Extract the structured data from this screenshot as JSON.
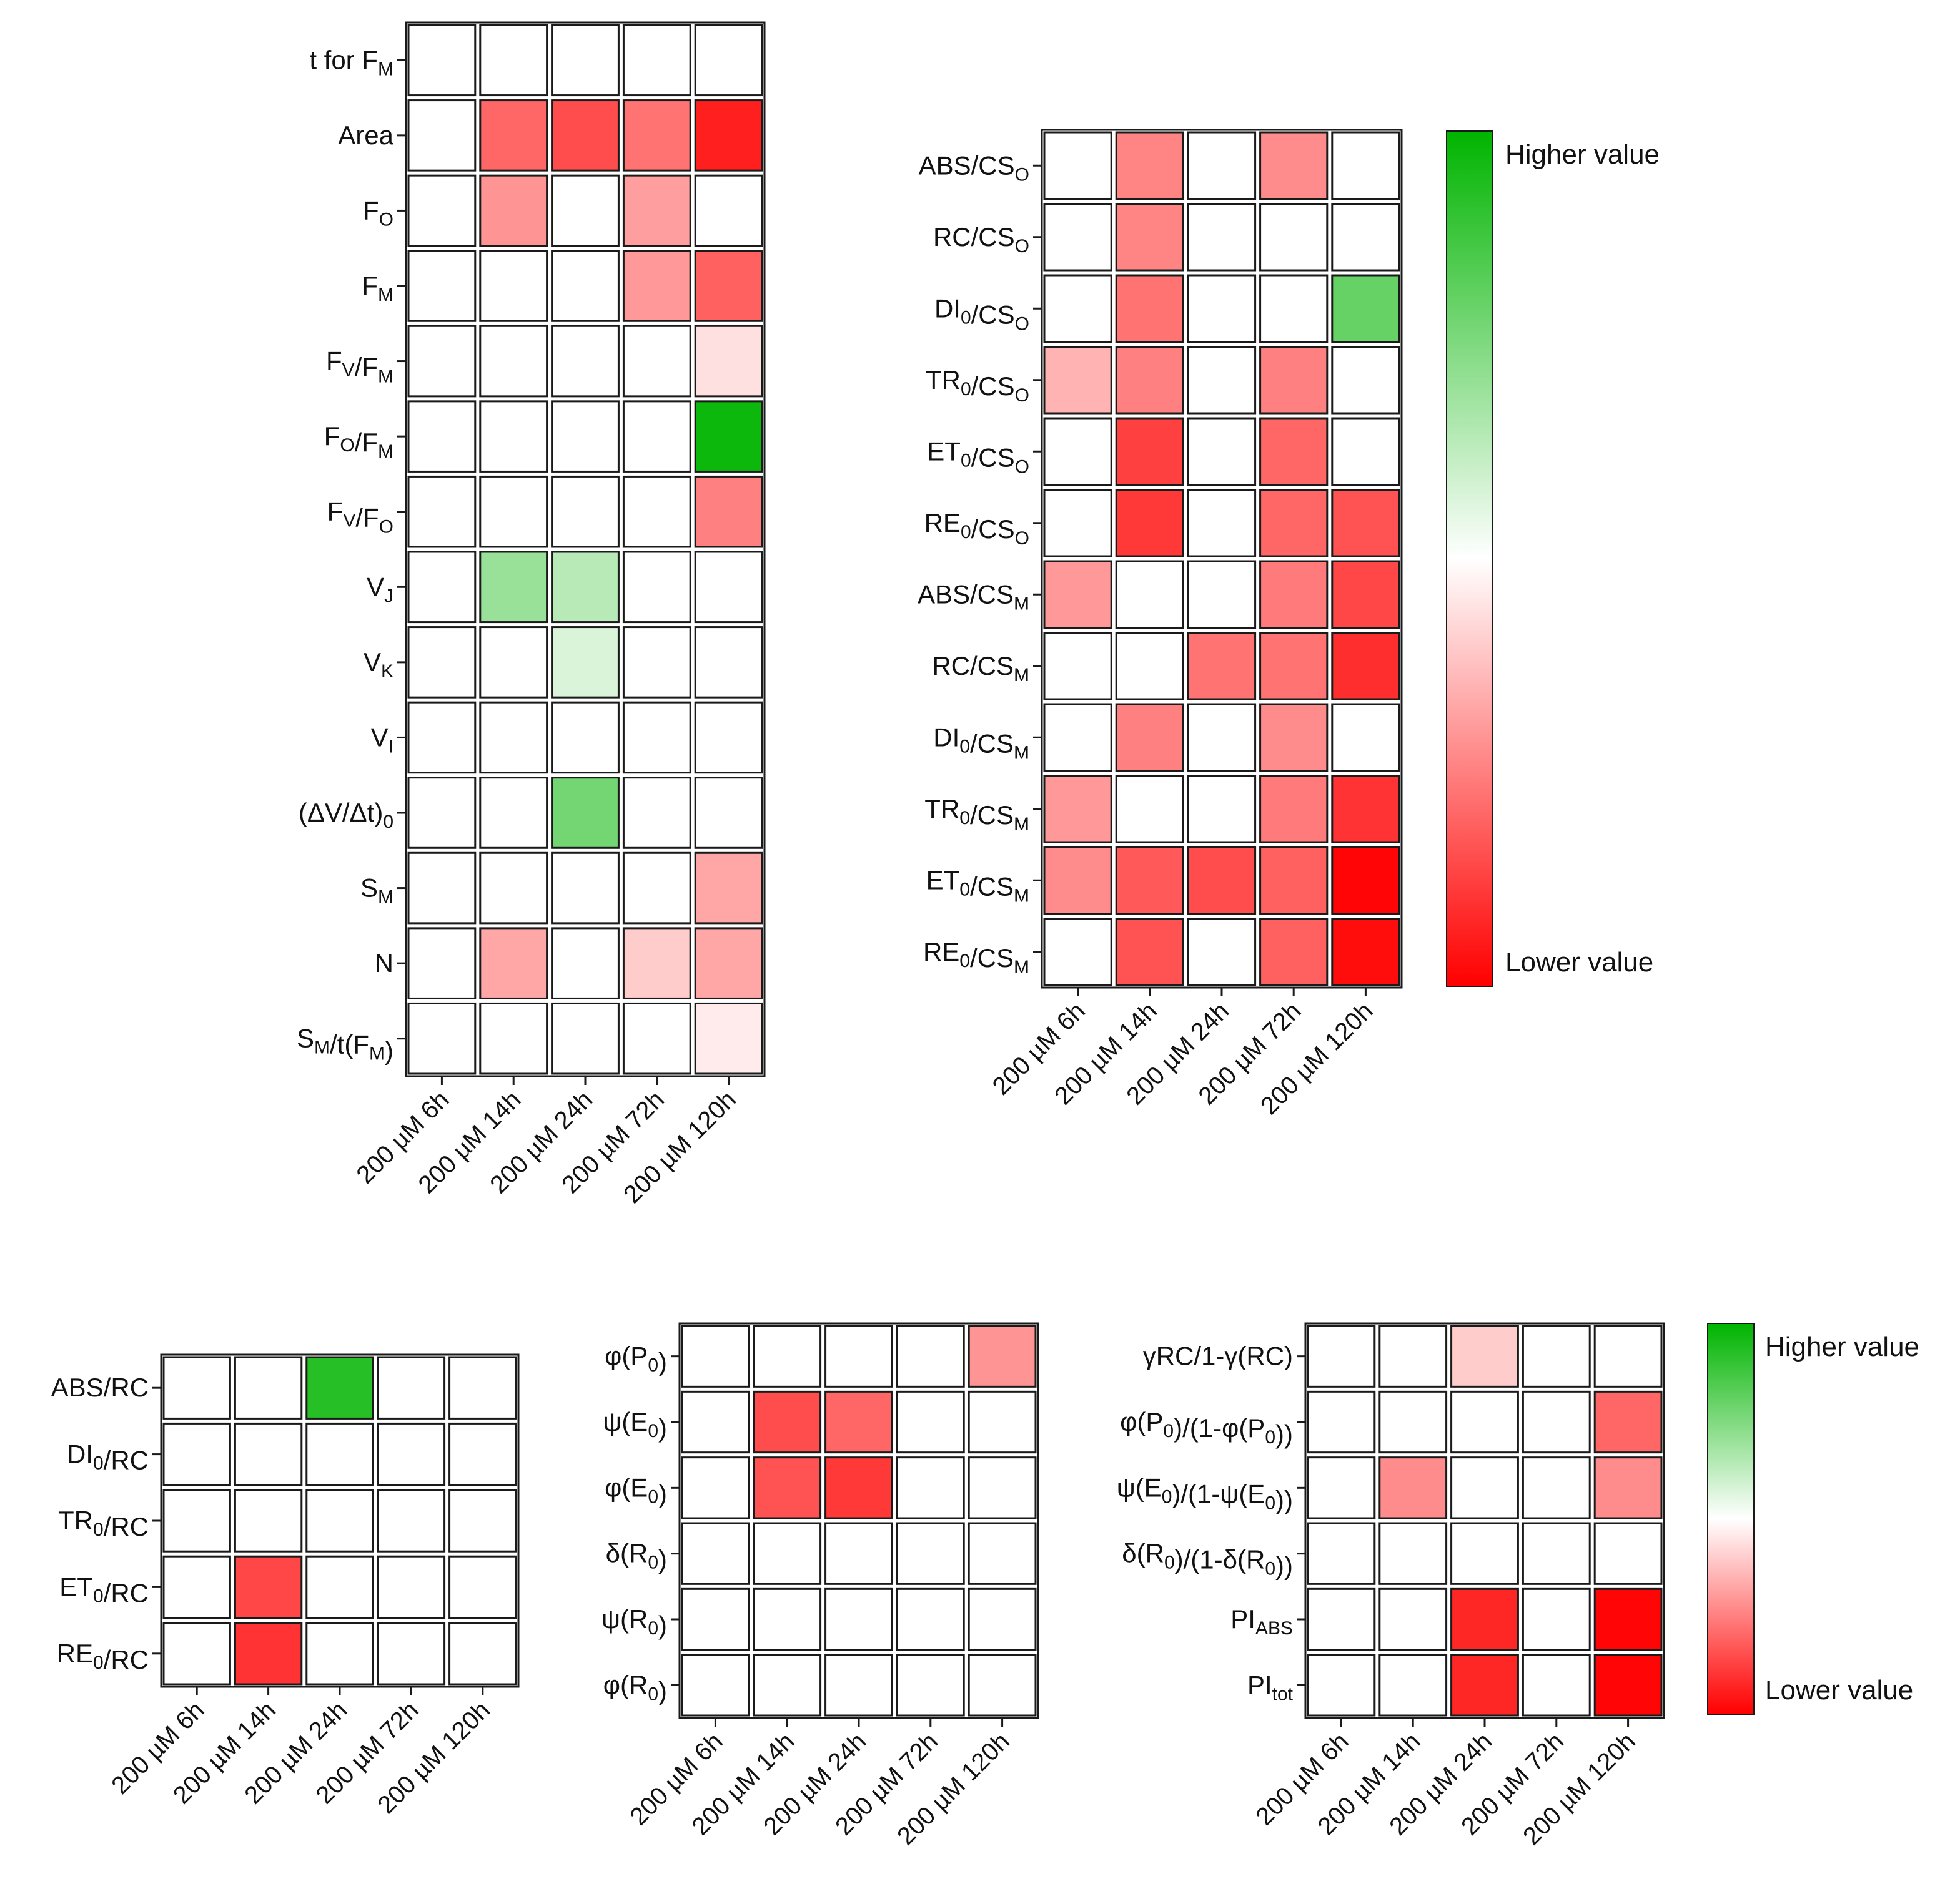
{
  "chart_data": [
    {
      "id": "heatmap-1",
      "type": "heatmap",
      "columns": [
        "200 µM 6h",
        "200 µM 14h",
        "200 µM 24h",
        "200 µM 72h",
        "200 µM 120h"
      ],
      "rows": [
        {
          "label": [
            [
              "t for F",
              ""
            ],
            [
              "M",
              "sub"
            ]
          ],
          "values": [
            0,
            0,
            0,
            0,
            0
          ]
        },
        {
          "label": [
            [
              "Area",
              ""
            ]
          ],
          "values": [
            0,
            -0.6,
            -0.7,
            -0.55,
            -0.88
          ]
        },
        {
          "label": [
            [
              "F",
              ""
            ],
            [
              "O",
              "sub"
            ]
          ],
          "values": [
            0,
            -0.42,
            0,
            -0.38,
            0
          ]
        },
        {
          "label": [
            [
              "F",
              ""
            ],
            [
              "M",
              "sub"
            ]
          ],
          "values": [
            0,
            0,
            0,
            -0.4,
            -0.62
          ]
        },
        {
          "label": [
            [
              "F",
              ""
            ],
            [
              "V",
              "sub"
            ],
            [
              "/F",
              ""
            ],
            [
              "M",
              "sub"
            ]
          ],
          "values": [
            0,
            0,
            0,
            0,
            -0.12
          ]
        },
        {
          "label": [
            [
              "F",
              ""
            ],
            [
              "O",
              "sub"
            ],
            [
              "/F",
              ""
            ],
            [
              "M",
              "sub"
            ]
          ],
          "values": [
            0,
            0,
            0,
            0,
            0.95
          ]
        },
        {
          "label": [
            [
              "F",
              ""
            ],
            [
              "V",
              "sub"
            ],
            [
              "/F",
              ""
            ],
            [
              "O",
              "sub"
            ]
          ],
          "values": [
            0,
            0,
            0,
            0,
            -0.5
          ]
        },
        {
          "label": [
            [
              "V",
              ""
            ],
            [
              "J",
              "sub"
            ]
          ],
          "values": [
            0,
            0.4,
            0.28,
            0,
            0
          ]
        },
        {
          "label": [
            [
              "V",
              ""
            ],
            [
              "K",
              "sub"
            ]
          ],
          "values": [
            0,
            0,
            0.15,
            0,
            0
          ]
        },
        {
          "label": [
            [
              "V",
              ""
            ],
            [
              "I",
              "sub"
            ]
          ],
          "values": [
            0,
            0,
            0,
            0,
            0
          ]
        },
        {
          "label": [
            [
              "(ΔV/Δt)",
              ""
            ],
            [
              "0",
              "sub"
            ]
          ],
          "values": [
            0,
            0,
            0.55,
            0,
            0
          ]
        },
        {
          "label": [
            [
              "S",
              ""
            ],
            [
              "M",
              "sub"
            ]
          ],
          "values": [
            0,
            0,
            0,
            0,
            -0.35
          ]
        },
        {
          "label": [
            [
              "N",
              ""
            ]
          ],
          "values": [
            0,
            -0.35,
            0,
            -0.2,
            -0.35
          ]
        },
        {
          "label": [
            [
              "S",
              ""
            ],
            [
              "M",
              "sub"
            ],
            [
              "/t(F",
              ""
            ],
            [
              "M",
              "sub"
            ],
            [
              ")",
              ""
            ]
          ],
          "values": [
            0,
            0,
            0,
            0,
            -0.08
          ]
        }
      ]
    },
    {
      "id": "heatmap-2",
      "type": "heatmap",
      "columns": [
        "200 µM 6h",
        "200 µM 14h",
        "200 µM 24h",
        "200 µM 72h",
        "200 µM 120h"
      ],
      "rows": [
        {
          "label": [
            [
              "ABS/CS",
              ""
            ],
            [
              "O",
              "sub"
            ]
          ],
          "values": [
            0,
            -0.48,
            0,
            -0.45,
            0
          ]
        },
        {
          "label": [
            [
              "RC/CS",
              ""
            ],
            [
              "O",
              "sub"
            ]
          ],
          "values": [
            0,
            -0.48,
            0,
            0,
            0
          ]
        },
        {
          "label": [
            [
              "DI",
              ""
            ],
            [
              "0",
              "sub"
            ],
            [
              "/CS",
              ""
            ],
            [
              "O",
              "sub"
            ]
          ],
          "values": [
            0,
            -0.55,
            0,
            0,
            0.6
          ]
        },
        {
          "label": [
            [
              "TR",
              ""
            ],
            [
              "0",
              "sub"
            ],
            [
              "/CS",
              ""
            ],
            [
              "O",
              "sub"
            ]
          ],
          "values": [
            -0.3,
            -0.5,
            0,
            -0.5,
            0
          ]
        },
        {
          "label": [
            [
              "ET",
              ""
            ],
            [
              "0",
              "sub"
            ],
            [
              "/CS",
              ""
            ],
            [
              "O",
              "sub"
            ]
          ],
          "values": [
            0,
            -0.75,
            0,
            -0.6,
            0
          ]
        },
        {
          "label": [
            [
              "RE",
              ""
            ],
            [
              "0",
              "sub"
            ],
            [
              "/CS",
              ""
            ],
            [
              "O",
              "sub"
            ]
          ],
          "values": [
            0,
            -0.78,
            0,
            -0.6,
            -0.68
          ]
        },
        {
          "label": [
            [
              "ABS/CS",
              ""
            ],
            [
              "M",
              "sub"
            ]
          ],
          "values": [
            -0.4,
            0,
            0,
            -0.52,
            -0.72
          ]
        },
        {
          "label": [
            [
              "RC/CS",
              ""
            ],
            [
              "M",
              "sub"
            ]
          ],
          "values": [
            0,
            0,
            -0.55,
            -0.55,
            -0.82
          ]
        },
        {
          "label": [
            [
              "DI",
              ""
            ],
            [
              "0",
              "sub"
            ],
            [
              "/CS",
              ""
            ],
            [
              "M",
              "sub"
            ]
          ],
          "values": [
            0,
            -0.5,
            0,
            -0.45,
            0
          ]
        },
        {
          "label": [
            [
              "TR",
              ""
            ],
            [
              "0",
              "sub"
            ],
            [
              "/CS",
              ""
            ],
            [
              "M",
              "sub"
            ]
          ],
          "values": [
            -0.4,
            0,
            0,
            -0.52,
            -0.8
          ]
        },
        {
          "label": [
            [
              "ET",
              ""
            ],
            [
              "0",
              "sub"
            ],
            [
              "/CS",
              ""
            ],
            [
              "M",
              "sub"
            ]
          ],
          "values": [
            -0.45,
            -0.65,
            -0.7,
            -0.62,
            -0.98
          ]
        },
        {
          "label": [
            [
              "RE",
              ""
            ],
            [
              "0",
              "sub"
            ],
            [
              "/CS",
              ""
            ],
            [
              "M",
              "sub"
            ]
          ],
          "values": [
            0,
            -0.68,
            0,
            -0.62,
            -0.95
          ]
        }
      ]
    },
    {
      "id": "heatmap-3",
      "type": "heatmap",
      "columns": [
        "200 µM 6h",
        "200 µM 14h",
        "200 µM 24h",
        "200 µM 72h",
        "200 µM 120h"
      ],
      "rows": [
        {
          "label": [
            [
              "ABS/RC",
              ""
            ]
          ],
          "values": [
            0,
            0,
            0.85,
            0,
            0
          ]
        },
        {
          "label": [
            [
              "DI",
              ""
            ],
            [
              "0",
              "sub"
            ],
            [
              "/RC",
              ""
            ]
          ],
          "values": [
            0,
            0,
            0,
            0,
            0
          ]
        },
        {
          "label": [
            [
              "TR",
              ""
            ],
            [
              "0",
              "sub"
            ],
            [
              "/RC",
              ""
            ]
          ],
          "values": [
            0,
            0,
            0,
            0,
            0
          ]
        },
        {
          "label": [
            [
              "ET",
              ""
            ],
            [
              "0",
              "sub"
            ],
            [
              "/RC",
              ""
            ]
          ],
          "values": [
            0,
            -0.72,
            0,
            0,
            0
          ]
        },
        {
          "label": [
            [
              "RE",
              ""
            ],
            [
              "0",
              "sub"
            ],
            [
              "/RC",
              ""
            ]
          ],
          "values": [
            0,
            -0.8,
            0,
            0,
            0
          ]
        }
      ]
    },
    {
      "id": "heatmap-4",
      "type": "heatmap",
      "columns": [
        "200 µM 6h",
        "200 µM 14h",
        "200 µM 24h",
        "200 µM 72h",
        "200 µM 120h"
      ],
      "rows": [
        {
          "label": [
            [
              "φ(P",
              ""
            ],
            [
              "0",
              "sub"
            ],
            [
              ")",
              ""
            ]
          ],
          "values": [
            0,
            0,
            0,
            0,
            -0.42
          ]
        },
        {
          "label": [
            [
              "ψ(E",
              ""
            ],
            [
              "0",
              "sub"
            ],
            [
              ")",
              ""
            ]
          ],
          "values": [
            0,
            -0.7,
            -0.6,
            0,
            0
          ]
        },
        {
          "label": [
            [
              "φ(E",
              ""
            ],
            [
              "0",
              "sub"
            ],
            [
              ")",
              ""
            ]
          ],
          "values": [
            0,
            -0.68,
            -0.78,
            0,
            0
          ]
        },
        {
          "label": [
            [
              "δ(R",
              ""
            ],
            [
              "0",
              "sub"
            ],
            [
              ")",
              ""
            ]
          ],
          "values": [
            0,
            0,
            0,
            0,
            0
          ]
        },
        {
          "label": [
            [
              "ψ(R",
              ""
            ],
            [
              "0",
              "sub"
            ],
            [
              ")",
              ""
            ]
          ],
          "values": [
            0,
            0,
            0,
            0,
            0
          ]
        },
        {
          "label": [
            [
              "φ(R",
              ""
            ],
            [
              "0",
              "sub"
            ],
            [
              ")",
              ""
            ]
          ],
          "values": [
            0,
            0,
            0,
            0,
            0
          ]
        }
      ]
    },
    {
      "id": "heatmap-5",
      "type": "heatmap",
      "columns": [
        "200 µM 6h",
        "200 µM 14h",
        "200 µM 24h",
        "200 µM 72h",
        "200 µM 120h"
      ],
      "rows": [
        {
          "label": [
            [
              "γRC/1-γ(RC)",
              ""
            ]
          ],
          "values": [
            0,
            0,
            -0.2,
            0,
            0
          ]
        },
        {
          "label": [
            [
              "φ(P",
              ""
            ],
            [
              "0",
              "sub"
            ],
            [
              ")/(1-φ(P",
              ""
            ],
            [
              "0",
              "sub"
            ],
            [
              "))",
              ""
            ]
          ],
          "values": [
            0,
            0,
            0,
            0,
            -0.6
          ]
        },
        {
          "label": [
            [
              "ψ(E",
              ""
            ],
            [
              "0",
              "sub"
            ],
            [
              ")/(1-ψ(E",
              ""
            ],
            [
              "0",
              "sub"
            ],
            [
              "))",
              ""
            ]
          ],
          "values": [
            0,
            -0.45,
            0,
            0,
            -0.45
          ]
        },
        {
          "label": [
            [
              "δ(R",
              ""
            ],
            [
              "0",
              "sub"
            ],
            [
              ")/(1-δ(R",
              ""
            ],
            [
              "0",
              "sub"
            ],
            [
              "))",
              ""
            ]
          ],
          "values": [
            0,
            0,
            0,
            0,
            0
          ]
        },
        {
          "label": [
            [
              "PI",
              ""
            ],
            [
              "ABS",
              "sub"
            ]
          ],
          "values": [
            0,
            0,
            -0.85,
            0,
            -0.98
          ]
        },
        {
          "label": [
            [
              "PI",
              ""
            ],
            [
              "tot",
              "sub"
            ]
          ],
          "values": [
            0,
            0,
            -0.85,
            0,
            -0.98
          ]
        }
      ]
    }
  ],
  "legends": [
    {
      "id": "legend-1",
      "high_label": "Higher value",
      "low_label": "Lower value"
    },
    {
      "id": "legend-2",
      "high_label": "Higher value",
      "low_label": "Lower value"
    }
  ],
  "colors": {
    "high": "#00b400",
    "mid": "#ffffff",
    "low": "#ff0000",
    "grid": "#1a1a1a"
  }
}
